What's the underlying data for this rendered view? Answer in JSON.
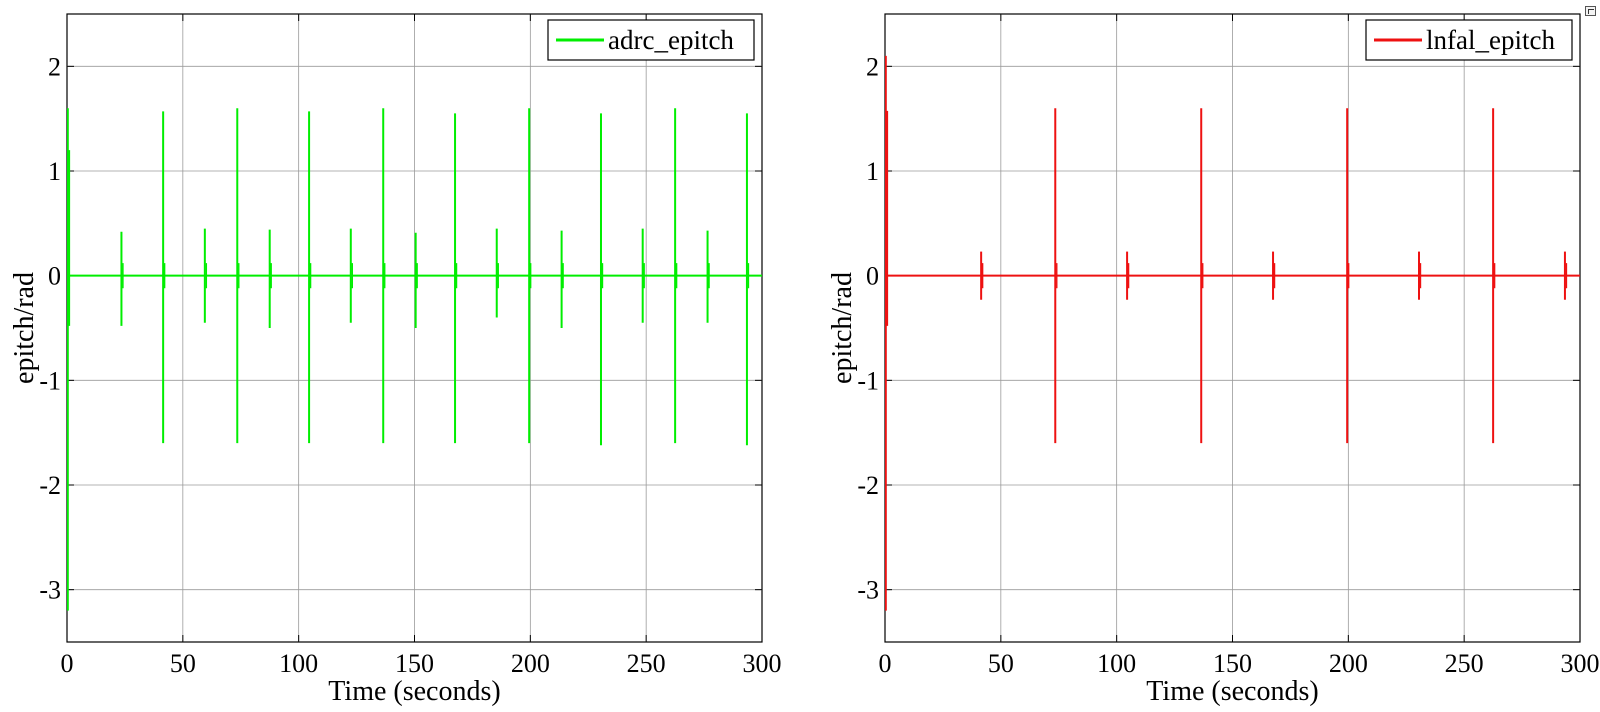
{
  "chart_data": [
    {
      "type": "line",
      "xlabel": "Time (seconds)",
      "ylabel": "epitch/rad",
      "xlim": [
        0,
        300
      ],
      "ylim": [
        -3.5,
        2.5
      ],
      "xticks": [
        0,
        50,
        100,
        150,
        200,
        250,
        300
      ],
      "xtick_labels": [
        "0",
        "50",
        "100",
        "150",
        "200",
        "250",
        "300"
      ],
      "yticks": [
        -3,
        -2,
        -1,
        0,
        1,
        2
      ],
      "ytick_labels": [
        "-3",
        "-2",
        "-1",
        "0",
        "1",
        "2"
      ],
      "grid": true,
      "legend": "top-right",
      "series": [
        {
          "name": "adrc_epitch",
          "color": "#00ee00",
          "baseline": 0,
          "initial_transient": {
            "min": -3.2,
            "max": 1.6
          },
          "spikes": [
            {
              "t": 23.5,
              "min": -0.48,
              "max": 0.42
            },
            {
              "t": 41.5,
              "min": -1.6,
              "max": 1.57
            },
            {
              "t": 59.5,
              "min": -0.45,
              "max": 0.45
            },
            {
              "t": 73.5,
              "min": -1.6,
              "max": 1.6
            },
            {
              "t": 87.5,
              "min": -0.5,
              "max": 0.44
            },
            {
              "t": 104.5,
              "min": -1.6,
              "max": 1.57
            },
            {
              "t": 122.5,
              "min": -0.45,
              "max": 0.45
            },
            {
              "t": 136.5,
              "min": -1.6,
              "max": 1.6
            },
            {
              "t": 150.5,
              "min": -0.5,
              "max": 0.41
            },
            {
              "t": 167.5,
              "min": -1.6,
              "max": 1.55
            },
            {
              "t": 185.5,
              "min": -0.4,
              "max": 0.45
            },
            {
              "t": 199.5,
              "min": -1.6,
              "max": 1.6
            },
            {
              "t": 213.5,
              "min": -0.5,
              "max": 0.43
            },
            {
              "t": 230.5,
              "min": -1.62,
              "max": 1.55
            },
            {
              "t": 248.5,
              "min": -0.45,
              "max": 0.45
            },
            {
              "t": 262.5,
              "min": -1.6,
              "max": 1.6
            },
            {
              "t": 276.5,
              "min": -0.45,
              "max": 0.43
            },
            {
              "t": 293.5,
              "min": -1.62,
              "max": 1.55
            }
          ]
        },
        {
          "name": "lnfal_epitch",
          "color": "#ee1111",
          "baseline": 0,
          "initial_transient": {
            "min": -3.2,
            "max": 2.1
          },
          "spikes": [
            {
              "t": 41.5,
              "min": -0.23,
              "max": 0.23
            },
            {
              "t": 73.5,
              "min": -1.6,
              "max": 1.6
            },
            {
              "t": 104.5,
              "min": -0.23,
              "max": 0.23
            },
            {
              "t": 136.5,
              "min": -1.6,
              "max": 1.6
            },
            {
              "t": 167.5,
              "min": -0.23,
              "max": 0.23
            },
            {
              "t": 199.5,
              "min": -1.6,
              "max": 1.6
            },
            {
              "t": 230.5,
              "min": -0.23,
              "max": 0.23
            },
            {
              "t": 262.5,
              "min": -1.6,
              "max": 1.6
            },
            {
              "t": 293.5,
              "min": -0.23,
              "max": 0.23
            }
          ]
        }
      ]
    }
  ]
}
